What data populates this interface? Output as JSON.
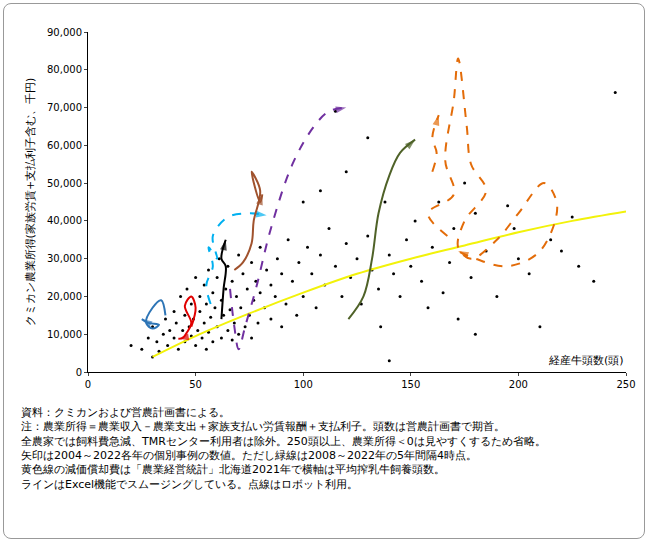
{
  "chart_data": {
    "type": "scatter",
    "ylabel": "クミカン農業所得(家族労賃+支払利子含む、千円)",
    "xlabel": "経産牛頭数(頭)",
    "annotations": [
      "資料：クミカンおよび営農計画書による。",
      "注：農業所得＝農業収入－農業支出＋家族支払い労賃報酬＋支払利子。頭数は営農計画書で期首。",
      "全農家では飼料費急減、TMRセンター利用者は除外。250頭以上、農業所得＜0は見やすくするため省略。",
      "矢印は2004～2022各年の個別事例の数値。ただし緑線は2008～2022年の5年間隔4時点。",
      "黄色線の減価償却費は「農業経営統計」北海道2021年で横軸は平均搾乳牛飼養頭数。",
      "ラインはExcel機能でスムージングしている。点線はロボット利用。"
    ],
    "xlim": [
      0,
      250
    ],
    "xticks": [
      0,
      50,
      100,
      150,
      200,
      250
    ],
    "ylim": [
      0,
      90000
    ],
    "yticks": [
      0,
      {
        "value": 10000,
        "label": "10,000"
      },
      {
        "value": 20000,
        "label": "20,000"
      },
      {
        "value": 30000,
        "label": "30,000"
      },
      {
        "value": 40000,
        "label": "40,000"
      },
      {
        "value": 50000,
        "label": "50,000"
      },
      {
        "value": 60000,
        "label": "60,000"
      },
      {
        "value": 70000,
        "label": "70,000"
      },
      {
        "value": 80000,
        "label": "80,000"
      },
      {
        "value": 90000,
        "label": "90,000"
      }
    ],
    "grid": false,
    "series": [
      {
        "type": "scatter",
        "marker": "dot",
        "color": "#000000",
        "x": [
          20,
          25,
          28,
          30,
          32,
          33,
          35,
          36,
          37,
          38,
          40,
          40,
          41,
          42,
          43,
          44,
          45,
          45,
          46,
          47,
          48,
          48,
          49,
          50,
          50,
          51,
          52,
          52,
          53,
          54,
          54,
          55,
          55,
          56,
          56,
          57,
          58,
          58,
          59,
          60,
          60,
          61,
          62,
          62,
          63,
          64,
          65,
          65,
          66,
          67,
          67,
          68,
          69,
          70,
          70,
          71,
          72,
          73,
          74,
          75,
          76,
          76,
          77,
          78,
          79,
          80,
          80,
          82,
          83,
          85,
          85,
          87,
          88,
          90,
          90,
          92,
          93,
          95,
          97,
          98,
          100,
          102,
          104,
          106,
          108,
          110,
          112,
          115,
          118,
          120,
          122,
          125,
          127,
          130,
          132,
          135,
          136,
          138,
          140,
          142,
          145,
          148,
          150,
          152,
          155,
          158,
          160,
          163,
          165,
          168,
          170,
          172,
          175,
          178,
          180,
          185,
          190,
          195,
          198,
          200,
          205,
          210,
          215,
          220,
          225,
          228,
          235,
          245,
          115,
          130,
          120,
          108,
          140,
          180,
          30,
          100
        ],
        "values": [
          7000,
          6000,
          9000,
          12000,
          8000,
          5500,
          10000,
          14000,
          7000,
          11000,
          9000,
          16000,
          13000,
          6000,
          20000,
          11000,
          8000,
          15000,
          22000,
          12000,
          9500,
          18000,
          14000,
          7000,
          25000,
          11000,
          16000,
          20000,
          9000,
          13000,
          23000,
          6000,
          18000,
          10500,
          27000,
          14500,
          21000,
          8000,
          17000,
          12000,
          25000,
          30000,
          9000,
          19000,
          15000,
          22000,
          11000,
          28000,
          16500,
          8500,
          24000,
          13000,
          20000,
          10000,
          31000,
          17000,
          26000,
          12000,
          22000,
          15000,
          9000,
          29000,
          19000,
          24000,
          13000,
          21000,
          33000,
          17000,
          27000,
          14000,
          23000,
          20000,
          30000,
          12000,
          26000,
          18000,
          35000,
          24000,
          15000,
          29000,
          20000,
          33000,
          26000,
          17000,
          31000,
          23000,
          38000,
          28000,
          20000,
          34000,
          25000,
          30000,
          18000,
          36000,
          27000,
          22000,
          12000,
          45000,
          31000,
          26000,
          20000,
          35000,
          28000,
          40000,
          24000,
          17000,
          33000,
          45000,
          21000,
          29000,
          38000,
          14000,
          50000,
          25000,
          42000,
          32000,
          20000,
          44000,
          38000,
          30000,
          26000,
          12000,
          35000,
          32000,
          41000,
          28000,
          24000,
          74000,
          69000,
          62000,
          53000,
          48000,
          3000,
          10000,
          4000,
          45000
        ]
      },
      {
        "type": "line",
        "line_style": "solid",
        "color": "#f2f20a",
        "x": [
          30,
          50,
          75,
          100,
          125,
          150,
          175,
          200,
          225,
          250
        ],
        "values": [
          4000,
          9500,
          15500,
          21000,
          26000,
          30000,
          33500,
          37000,
          40000,
          42500
        ]
      },
      {
        "type": "line",
        "line_style": "solid",
        "color": "#2e75b6",
        "marker": "arrow",
        "x": [
          36,
          34,
          30,
          27,
          30,
          33,
          28,
          25
        ],
        "values": [
          15000,
          19000,
          17000,
          13000,
          11500,
          12500,
          13000,
          14000
        ]
      },
      {
        "type": "line",
        "line_style": "solid",
        "color": "#e00000",
        "marker": "arrow",
        "x": [
          48,
          50,
          48,
          45,
          48,
          46,
          44,
          42
        ],
        "values": [
          12000,
          17000,
          20000,
          17500,
          13000,
          10500,
          9000,
          8800
        ]
      },
      {
        "type": "line",
        "line_style": "dash",
        "color": "#00b0f0",
        "marker": "arrow",
        "x": [
          57,
          55,
          58,
          56,
          60,
          58,
          65,
          75,
          83
        ],
        "values": [
          18000,
          23000,
          28000,
          33000,
          30000,
          36000,
          41000,
          42000,
          41500
        ]
      },
      {
        "type": "line",
        "line_style": "solid",
        "color": "#000000",
        "marker": "arrow",
        "x": [
          62,
          63,
          64,
          62,
          64
        ],
        "values": [
          14000,
          22000,
          28000,
          30000,
          35000
        ]
      },
      {
        "type": "line",
        "line_style": "solid",
        "color": "#a0522d",
        "marker": "arrow",
        "x": [
          68,
          72,
          76,
          77,
          80,
          76,
          80,
          81
        ],
        "values": [
          27000,
          29000,
          34000,
          40000,
          48000,
          53000,
          45000,
          47000
        ]
      },
      {
        "type": "line",
        "line_style": "dash",
        "color": "#7030a0",
        "marker": "arrow",
        "x": [
          66,
          68,
          70,
          73,
          78,
          85,
          95,
          105,
          112,
          120
        ],
        "values": [
          22000,
          12000,
          6000,
          12000,
          22000,
          38000,
          55000,
          65000,
          69000,
          70000
        ]
      },
      {
        "type": "line",
        "line_style": "solid",
        "color": "#4f6228",
        "marker": "arrow",
        "x": [
          121,
          128,
          132,
          135,
          140,
          145,
          152
        ],
        "values": [
          14000,
          20000,
          30000,
          42000,
          52000,
          58000,
          61500
        ]
      },
      {
        "type": "line",
        "line_style": "dash",
        "color": "#e36c09",
        "marker": "arrow",
        "x": [
          160,
          162,
          160,
          163
        ],
        "values": [
          53000,
          58000,
          62000,
          68000
        ]
      },
      {
        "type": "line",
        "line_style": "dash",
        "color": "#e36c09",
        "marker": "arrow",
        "x": [
          167,
          158,
          170,
          166,
          170,
          172,
          176,
          178,
          185,
          175,
          172,
          178,
          190,
          200,
          212,
          218,
          210,
          195,
          180,
          172
        ],
        "values": [
          36000,
          42000,
          47000,
          56000,
          72000,
          83000,
          65000,
          55000,
          48000,
          40000,
          33000,
          30000,
          35000,
          42000,
          50000,
          44000,
          32000,
          28000,
          30000,
          32000
        ]
      }
    ]
  }
}
